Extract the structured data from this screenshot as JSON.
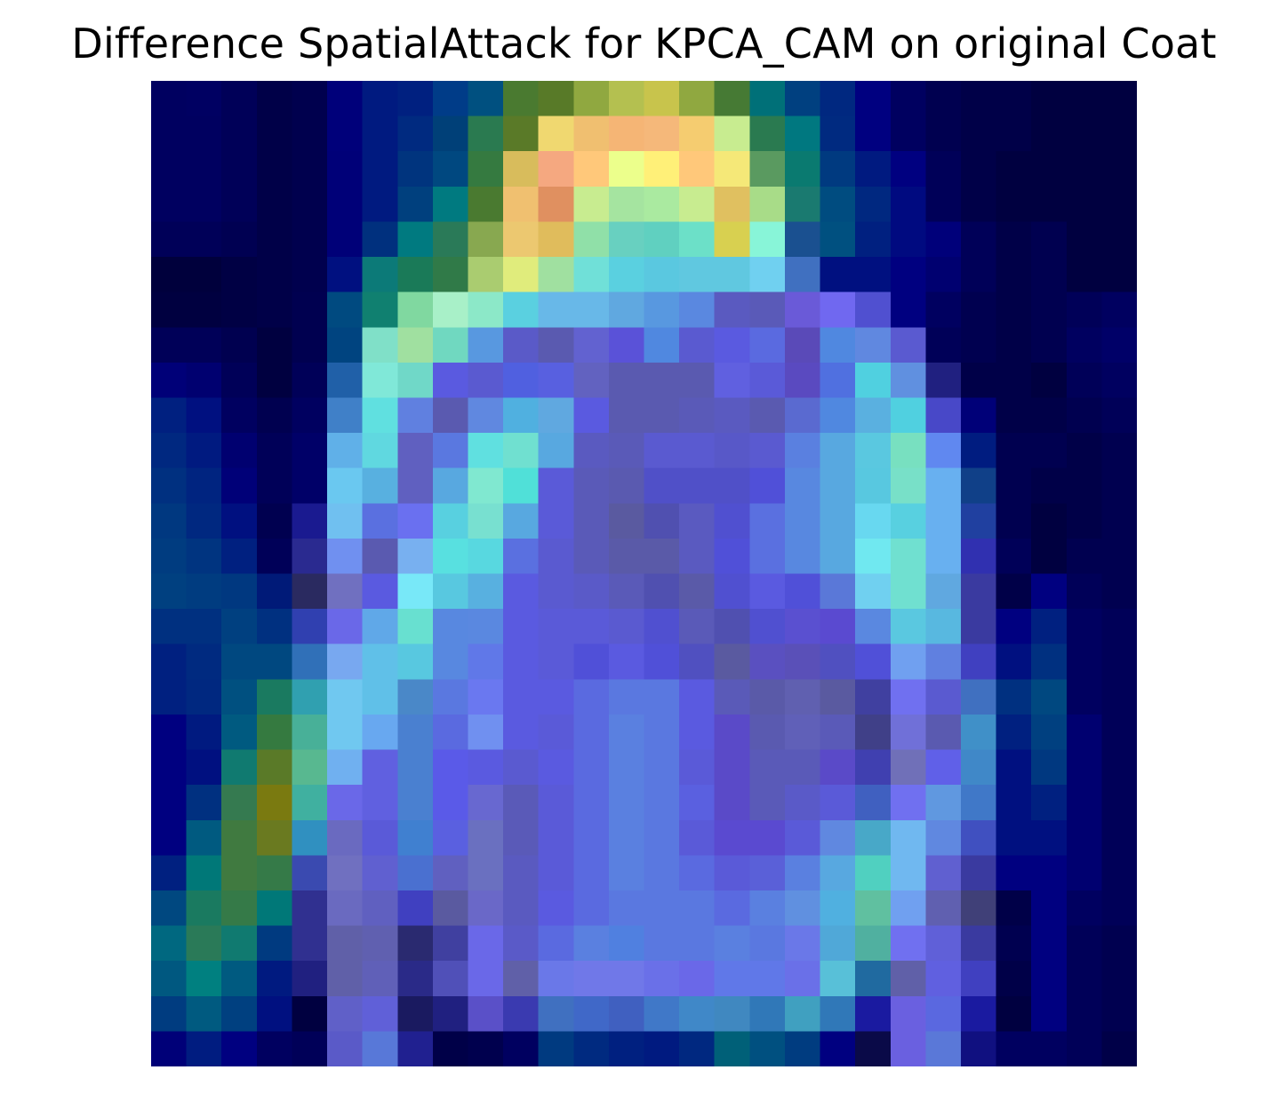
{
  "chart_data": {
    "type": "heatmap",
    "title": "Difference SpatialAttack for KPCA_CAM on original Coat",
    "xlabel": "",
    "ylabel": "",
    "axes_visible": false,
    "grid": false,
    "colormap": "jet overlaid on grayscale image",
    "rows": 28,
    "cols": 28,
    "values": [
      [
        "#000060",
        "#000062",
        "#000058",
        "#000048",
        "#00004e",
        "#00007a",
        "#001a80",
        "#002080",
        "#003c88",
        "#005080",
        "#4a7a30",
        "#587a28",
        "#90a840",
        "#b4c050",
        "#c8c44c",
        "#90a840",
        "#467a34",
        "#007078",
        "#004080",
        "#002880",
        "#000080",
        "#000060",
        "#000050",
        "#000048",
        "#000048",
        "#000040",
        "#000040",
        "#000040"
      ],
      [
        "#000060",
        "#000060",
        "#000058",
        "#000048",
        "#00004e",
        "#00007a",
        "#001a80",
        "#002a80",
        "#004078",
        "#2a7a50",
        "#5a7a28",
        "#f0d870",
        "#f0bf70",
        "#f5b575",
        "#f5b87a",
        "#f5cc70",
        "#c8ec90",
        "#2a7a50",
        "#007880",
        "#002a80",
        "#000080",
        "#000060",
        "#000050",
        "#000048",
        "#000048",
        "#000040",
        "#000040",
        "#000040"
      ],
      [
        "#000060",
        "#000060",
        "#000058",
        "#000048",
        "#00004e",
        "#000078",
        "#001a80",
        "#00347e",
        "#004880",
        "#357a40",
        "#d8bc5c",
        "#f5a880",
        "#ffc87a",
        "#ecff8c",
        "#fff078",
        "#ffc87a",
        "#f5e878",
        "#5a9a60",
        "#0a7a70",
        "#003a80",
        "#001a80",
        "#000080",
        "#000058",
        "#000048",
        "#000040",
        "#000040",
        "#000040",
        "#000040"
      ],
      [
        "#000060",
        "#000060",
        "#000058",
        "#000048",
        "#00004e",
        "#000078",
        "#001a80",
        "#00407e",
        "#007a80",
        "#4a7a30",
        "#f0c070",
        "#e09060",
        "#c8ec90",
        "#a5e4a0",
        "#aaeaa0",
        "#c8ec90",
        "#e0c060",
        "#a8dc88",
        "#1a7a70",
        "#004c80",
        "#002880",
        "#000a80",
        "#000058",
        "#000048",
        "#000040",
        "#000040",
        "#000040",
        "#000040"
      ],
      [
        "#000058",
        "#000058",
        "#000052",
        "#000048",
        "#00004e",
        "#000078",
        "#00307e",
        "#007a80",
        "#2a7a58",
        "#88a850",
        "#ecc870",
        "#e0bc5c",
        "#90e0a8",
        "#68d0c0",
        "#60d0c0",
        "#6ce0c8",
        "#d8d050",
        "#88f5d8",
        "#1a5090",
        "#005080",
        "#002080",
        "#000a80",
        "#00007a",
        "#000058",
        "#000048",
        "#000050",
        "#000040",
        "#000040"
      ],
      [
        "#00003c",
        "#00003c",
        "#000044",
        "#000048",
        "#00004e",
        "#001080",
        "#0c7a78",
        "#1a7a58",
        "#307a48",
        "#aacc70",
        "#e0ec7c",
        "#a0e0a0",
        "#70e0d8",
        "#5ad0e0",
        "#5ac8e0",
        "#60c8e0",
        "#60c8e0",
        "#70d0f0",
        "#4070c0",
        "#001080",
        "#001080",
        "#000080",
        "#000070",
        "#000058",
        "#000048",
        "#000050",
        "#000040",
        "#000040"
      ],
      [
        "#000040",
        "#000040",
        "#000044",
        "#000048",
        "#000050",
        "#004a80",
        "#108070",
        "#80d8a0",
        "#a8f0c8",
        "#8ce8c8",
        "#5ad0e0",
        "#68b8e8",
        "#68b8e8",
        "#60a8e0",
        "#5898e0",
        "#5a88e0",
        "#5a5ac0",
        "#5a5ab8",
        "#6a5ad8",
        "#7068f0",
        "#5050d0",
        "#000080",
        "#000060",
        "#000050",
        "#000048",
        "#000050",
        "#000058",
        "#000060"
      ],
      [
        "#000058",
        "#000058",
        "#000050",
        "#000040",
        "#000050",
        "#004480",
        "#80e0c8",
        "#a0e0a0",
        "#70d8c0",
        "#5898e0",
        "#5a5ac8",
        "#5a5ab0",
        "#6262d0",
        "#5a52d8",
        "#5088e0",
        "#5a5ad0",
        "#5a5ae0",
        "#5a6ae0",
        "#5a4ab8",
        "#5088e0",
        "#6088e0",
        "#5a5ad0",
        "#000058",
        "#000050",
        "#000048",
        "#000050",
        "#000060",
        "#000068"
      ],
      [
        "#000078",
        "#000070",
        "#000058",
        "#000040",
        "#000058",
        "#2060a8",
        "#80e8d8",
        "#70d8c8",
        "#5a5ae0",
        "#5a5ad0",
        "#5060e0",
        "#5860e0",
        "#6262c0",
        "#5a5ab0",
        "#5a5ab0",
        "#5a5ab0",
        "#6060e0",
        "#5a5ad8",
        "#5a4ac0",
        "#5070e0",
        "#50d0e0",
        "#6090e0",
        "#202080",
        "#000048",
        "#000048",
        "#000040",
        "#000058",
        "#000060"
      ],
      [
        "#002080",
        "#001080",
        "#000060",
        "#000050",
        "#000060",
        "#4080c8",
        "#60e0e0",
        "#6080e0",
        "#5a5ab0",
        "#6088e0",
        "#50b0e0",
        "#60a8e0",
        "#5a5ae0",
        "#5a5ab0",
        "#5a5ab0",
        "#5a5ab8",
        "#5a5ac0",
        "#5a5ab0",
        "#5a6ad0",
        "#5088e0",
        "#5ab0e0",
        "#50d0e0",
        "#4848c8",
        "#000078",
        "#000048",
        "#000048",
        "#000050",
        "#000058"
      ],
      [
        "#002880",
        "#001a80",
        "#000070",
        "#000058",
        "#000068",
        "#60b0e8",
        "#60d8e0",
        "#6060c0",
        "#5a78e0",
        "#60e0e0",
        "#70e0d0",
        "#58a8e0",
        "#5a5ac0",
        "#5a5ab8",
        "#5a5ad0",
        "#5a5ad0",
        "#5858c8",
        "#5a5ad0",
        "#5a80e0",
        "#58a8e0",
        "#5ac8e0",
        "#78e0c0",
        "#6088f0",
        "#001c80",
        "#000050",
        "#000050",
        "#000048",
        "#000050"
      ],
      [
        "#003080",
        "#002480",
        "#000078",
        "#000058",
        "#000068",
        "#6ac8f0",
        "#58b0e0",
        "#6060c0",
        "#58a8e0",
        "#80e8d0",
        "#50e0d8",
        "#5a5ad8",
        "#5a5ab8",
        "#5a5ab0",
        "#5050c8",
        "#5050c8",
        "#5050c8",
        "#5050d8",
        "#5888e0",
        "#58a8e0",
        "#58c8e0",
        "#78e0c8",
        "#68b0f0",
        "#104088",
        "#000050",
        "#000048",
        "#000048",
        "#000050"
      ],
      [
        "#003880",
        "#002880",
        "#001080",
        "#000050",
        "#1a1a90",
        "#70c0f0",
        "#5a70e0",
        "#6a70f0",
        "#58d0e0",
        "#78e0d0",
        "#58a8e0",
        "#5a5ad8",
        "#5a5ab8",
        "#5a5aa0",
        "#5050b0",
        "#5a5ac0",
        "#5050d0",
        "#5a70e0",
        "#5888e0",
        "#58a8e0",
        "#68d8f0",
        "#58d0e0",
        "#68b0f0",
        "#2040a0",
        "#000050",
        "#000040",
        "#000048",
        "#000050"
      ],
      [
        "#003c80",
        "#003480",
        "#002080",
        "#000058",
        "#2a2a90",
        "#7090f0",
        "#5a5ab0",
        "#78b0f0",
        "#58e0e0",
        "#58d8e0",
        "#5a70e0",
        "#5a5ad0",
        "#5a5ab8",
        "#5a5aa8",
        "#5a5aa8",
        "#5a5ac0",
        "#5050d8",
        "#5a70e0",
        "#5888e0",
        "#58a8e0",
        "#70e8f0",
        "#70e0d0",
        "#68b0f0",
        "#3030b0",
        "#000058",
        "#000040",
        "#000050",
        "#000050"
      ],
      [
        "#004080",
        "#003c80",
        "#003880",
        "#001a78",
        "#2a2a60",
        "#7070c0",
        "#5a5ae0",
        "#78e8f8",
        "#58c8e0",
        "#58b0e0",
        "#5a5ae0",
        "#5a5ad0",
        "#5a5ac8",
        "#5a5ab8",
        "#5050b0",
        "#5a5aa8",
        "#5050d0",
        "#5a5ae0",
        "#5050d8",
        "#5a78d8",
        "#70d0f0",
        "#70e0d0",
        "#60a8e0",
        "#3a3aa0",
        "#000048",
        "#000080",
        "#000058",
        "#000050"
      ],
      [
        "#003080",
        "#003080",
        "#004080",
        "#003080",
        "#3040b0",
        "#6a68e8",
        "#60a8e8",
        "#68e0d0",
        "#5888e0",
        "#5a88e0",
        "#5a5ae0",
        "#5a5ad8",
        "#5a5ad8",
        "#5a5ad0",
        "#5050d0",
        "#5a5ab8",
        "#5050b0",
        "#5050d0",
        "#5a50d0",
        "#5a4ad0",
        "#5a88e0",
        "#5ac8e0",
        "#58b8e0",
        "#3a3aa0",
        "#000080",
        "#002080",
        "#000060",
        "#000058"
      ],
      [
        "#002080",
        "#002a80",
        "#004880",
        "#004880",
        "#3070b8",
        "#78a8f0",
        "#60c0e8",
        "#58c8e0",
        "#5888e0",
        "#6078e8",
        "#5a5ae0",
        "#5a5ad8",
        "#5050d8",
        "#5a5ae0",
        "#5050d8",
        "#5050c0",
        "#5a5aa0",
        "#5a50c0",
        "#5a50b8",
        "#5050c0",
        "#5050d8",
        "#70a0f0",
        "#6080e0",
        "#4040c0",
        "#001080",
        "#003080",
        "#000060",
        "#000058"
      ],
      [
        "#002080",
        "#002880",
        "#005080",
        "#1a7a60",
        "#30a0b0",
        "#70c8f0",
        "#60c0e8",
        "#4a88c8",
        "#5a78e0",
        "#6a78f0",
        "#5a5ae0",
        "#5a5ae0",
        "#5a6ae0",
        "#5a78e0",
        "#5a78e0",
        "#5a5ae0",
        "#5a5ab8",
        "#5a5aa8",
        "#6060b0",
        "#5a5aa0",
        "#4040a0",
        "#7070f0",
        "#5a5ad0",
        "#4070c0",
        "#003080",
        "#004880",
        "#000060",
        "#000058"
      ],
      [
        "#000080",
        "#001a80",
        "#005a80",
        "#357a40",
        "#48b098",
        "#70c8f0",
        "#68a8f0",
        "#4a80d0",
        "#5a6ae0",
        "#7090f0",
        "#5a5ae0",
        "#5a5ad8",
        "#5a6ae0",
        "#5a80e0",
        "#5a78e0",
        "#5a5ae0",
        "#5a4ac8",
        "#5a5ab0",
        "#6060b8",
        "#5a5ab8",
        "#404088",
        "#7070d8",
        "#5a5ab0",
        "#4090c8",
        "#002080",
        "#004080",
        "#000070",
        "#000058"
      ],
      [
        "#000080",
        "#001080",
        "#107a70",
        "#5a7a28",
        "#58b890",
        "#70b0f0",
        "#6060e0",
        "#4a80d0",
        "#5a5ae8",
        "#5a5ae0",
        "#5a5ad0",
        "#5a5ae0",
        "#5a6ae0",
        "#5a80e0",
        "#5a78e0",
        "#5a5ad8",
        "#5a4ac8",
        "#5a5ab8",
        "#5a5ab8",
        "#5a4ac8",
        "#4040b0",
        "#7070b8",
        "#6060e8",
        "#4088c8",
        "#001080",
        "#003880",
        "#000070",
        "#000058"
      ],
      [
        "#000080",
        "#003080",
        "#357a50",
        "#7a7a10",
        "#40b0a0",
        "#6a68e8",
        "#6060e0",
        "#4a80d0",
        "#5a5ae8",
        "#6868d0",
        "#5a5ab8",
        "#5a5ad8",
        "#5a6ae0",
        "#5a80e0",
        "#5a78e0",
        "#5a60e0",
        "#5a4ac8",
        "#5a5ab8",
        "#5a5ac8",
        "#5a5ad8",
        "#4060c0",
        "#7070f0",
        "#6098e0",
        "#4078c8",
        "#001080",
        "#002080",
        "#000070",
        "#000058"
      ],
      [
        "#000080",
        "#005a80",
        "#407a40",
        "#6a7a20",
        "#3090c0",
        "#6a6ac0",
        "#5a5ad8",
        "#4080d0",
        "#5a60e0",
        "#6a70c0",
        "#5a5ab8",
        "#5a5ad8",
        "#5a6ae0",
        "#5a80e0",
        "#5a78e0",
        "#5a5ad8",
        "#5a4ad0",
        "#5a4ad0",
        "#5a5ad8",
        "#6088e0",
        "#48a8c8",
        "#70b8f0",
        "#6088e0",
        "#4050c0",
        "#001080",
        "#001080",
        "#000070",
        "#000058"
      ],
      [
        "#002080",
        "#007878",
        "#407a40",
        "#357a48",
        "#3a4ab0",
        "#7070c0",
        "#6060d0",
        "#4a70d0",
        "#6060c0",
        "#6a70c0",
        "#5a5ac0",
        "#5a5ad8",
        "#5a6ae0",
        "#5a80e0",
        "#5a78e0",
        "#5a6ae0",
        "#5a5ad8",
        "#5a60d8",
        "#5a80e0",
        "#58a8e0",
        "#50d0c0",
        "#70b8f0",
        "#6060d0",
        "#3a3aa0",
        "#000080",
        "#000080",
        "#000070",
        "#000058"
      ],
      [
        "#004880",
        "#1a7a60",
        "#357a48",
        "#007878",
        "#303090",
        "#6a6ac0",
        "#6060c0",
        "#4040c0",
        "#5a5aa0",
        "#6a68c8",
        "#5a5ac0",
        "#5a5ae0",
        "#5a6ae0",
        "#5a78e0",
        "#5a78e0",
        "#5a78e0",
        "#5a6ae0",
        "#5a80e0",
        "#6090e0",
        "#50b0e0",
        "#60c0a0",
        "#70a0f0",
        "#6060b0",
        "#404078",
        "#000048",
        "#000080",
        "#000060",
        "#000058"
      ],
      [
        "#006880",
        "#2a7a58",
        "#107a70",
        "#003a80",
        "#303090",
        "#6060a8",
        "#6060b0",
        "#2a2a70",
        "#4040a0",
        "#6a68e8",
        "#5a5ac8",
        "#5a6ae0",
        "#5a80e0",
        "#5080e0",
        "#5a78e0",
        "#5a78e0",
        "#5a80e0",
        "#5a78e0",
        "#6a78e8",
        "#50a8d8",
        "#50b0a0",
        "#7070f0",
        "#6060d8",
        "#3a3aa0",
        "#000050",
        "#000080",
        "#000058",
        "#000050"
      ],
      [
        "#005880",
        "#008080",
        "#005a80",
        "#001a80",
        "#202080",
        "#6060a8",
        "#6060b8",
        "#2a2a88",
        "#5050b8",
        "#6a68e8",
        "#6060a8",
        "#6a78e8",
        "#7078e8",
        "#7078e8",
        "#6a70e8",
        "#6a68e8",
        "#6078e8",
        "#6078e8",
        "#6a70e8",
        "#58c0d8",
        "#206aa0",
        "#6060a8",
        "#6060e0",
        "#4040c0",
        "#000048",
        "#000080",
        "#000058",
        "#000050"
      ],
      [
        "#003c80",
        "#005a80",
        "#004080",
        "#001080",
        "#000040",
        "#6060c8",
        "#6060d8",
        "#1a1a60",
        "#202080",
        "#5a50c8",
        "#3a3ab0",
        "#4070c0",
        "#4068c8",
        "#4060c0",
        "#4078c8",
        "#4088c8",
        "#4088c0",
        "#3078b8",
        "#40a0c0",
        "#3078b8",
        "#1a1aa0",
        "#6a60e0",
        "#5a68e0",
        "#1a1aa0",
        "#000040",
        "#000080",
        "#000058",
        "#000050"
      ],
      [
        "#000078",
        "#001c80",
        "#000080",
        "#000060",
        "#000058",
        "#5a5ac8",
        "#5878d8",
        "#202090",
        "#000048",
        "#00004e",
        "#000060",
        "#003a80",
        "#002a80",
        "#002080",
        "#001a80",
        "#002880",
        "#006078",
        "#005080",
        "#003c80",
        "#000080",
        "#0a0a48",
        "#6a60e0",
        "#5a78d8",
        "#101080",
        "#000060",
        "#000060",
        "#000058",
        "#000048"
      ]
    ]
  }
}
